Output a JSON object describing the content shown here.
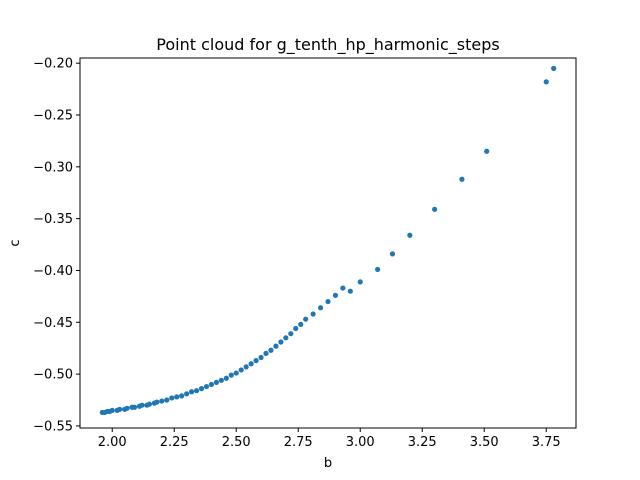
{
  "chart_data": {
    "type": "scatter",
    "title": "Point cloud for g_tenth_hp_harmonic_steps",
    "xlabel": "b",
    "ylabel": "c",
    "xlim": [
      1.87,
      3.87
    ],
    "ylim": [
      -0.552,
      -0.195
    ],
    "x_ticks": [
      2.0,
      2.25,
      2.5,
      2.75,
      3.0,
      3.25,
      3.5,
      3.75
    ],
    "x_tick_labels": [
      "2.00",
      "2.25",
      "2.50",
      "2.75",
      "3.00",
      "3.25",
      "3.50",
      "3.75"
    ],
    "y_ticks": [
      -0.55,
      -0.5,
      -0.45,
      -0.4,
      -0.35,
      -0.3,
      -0.25,
      -0.2
    ],
    "y_tick_labels": [
      "−0.55",
      "−0.50",
      "−0.45",
      "−0.40",
      "−0.35",
      "−0.30",
      "−0.25",
      "−0.20"
    ],
    "grid": false,
    "legend": "none",
    "marker_color": "#1f77b4",
    "series": [
      {
        "points": [
          [
            1.96,
            -0.537
          ],
          [
            1.97,
            -0.537
          ],
          [
            1.98,
            -0.536
          ],
          [
            1.99,
            -0.536
          ],
          [
            2.0,
            -0.535
          ],
          [
            2.02,
            -0.535
          ],
          [
            2.03,
            -0.534
          ],
          [
            2.05,
            -0.534
          ],
          [
            2.06,
            -0.533
          ],
          [
            2.08,
            -0.532
          ],
          [
            2.09,
            -0.532
          ],
          [
            2.11,
            -0.531
          ],
          [
            2.12,
            -0.53
          ],
          [
            2.14,
            -0.53
          ],
          [
            2.15,
            -0.529
          ],
          [
            2.17,
            -0.528
          ],
          [
            2.18,
            -0.527
          ],
          [
            2.2,
            -0.526
          ],
          [
            2.22,
            -0.525
          ],
          [
            2.24,
            -0.523
          ],
          [
            2.26,
            -0.522
          ],
          [
            2.28,
            -0.521
          ],
          [
            2.3,
            -0.519
          ],
          [
            2.32,
            -0.517
          ],
          [
            2.34,
            -0.516
          ],
          [
            2.36,
            -0.514
          ],
          [
            2.38,
            -0.512
          ],
          [
            2.4,
            -0.51
          ],
          [
            2.42,
            -0.508
          ],
          [
            2.44,
            -0.506
          ],
          [
            2.46,
            -0.504
          ],
          [
            2.48,
            -0.501
          ],
          [
            2.5,
            -0.499
          ],
          [
            2.52,
            -0.496
          ],
          [
            2.54,
            -0.493
          ],
          [
            2.56,
            -0.49
          ],
          [
            2.58,
            -0.487
          ],
          [
            2.6,
            -0.484
          ],
          [
            2.62,
            -0.48
          ],
          [
            2.64,
            -0.477
          ],
          [
            2.66,
            -0.473
          ],
          [
            2.68,
            -0.469
          ],
          [
            2.7,
            -0.465
          ],
          [
            2.72,
            -0.461
          ],
          [
            2.74,
            -0.456
          ],
          [
            2.76,
            -0.452
          ],
          [
            2.78,
            -0.447
          ],
          [
            2.81,
            -0.442
          ],
          [
            2.84,
            -0.436
          ],
          [
            2.87,
            -0.43
          ],
          [
            2.9,
            -0.424
          ],
          [
            2.93,
            -0.417
          ],
          [
            2.96,
            -0.42
          ],
          [
            3.0,
            -0.411
          ],
          [
            3.07,
            -0.399
          ],
          [
            3.13,
            -0.384
          ],
          [
            3.2,
            -0.366
          ],
          [
            3.3,
            -0.341
          ],
          [
            3.41,
            -0.312
          ],
          [
            3.51,
            -0.285
          ],
          [
            3.75,
            -0.218
          ],
          [
            3.78,
            -0.205
          ]
        ]
      }
    ]
  }
}
